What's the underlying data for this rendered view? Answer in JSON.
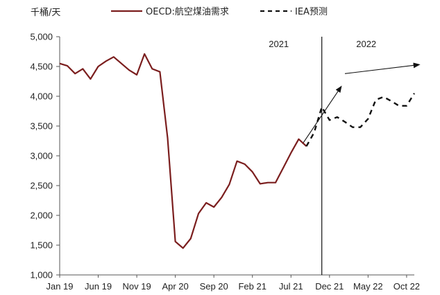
{
  "chart_data": {
    "type": "line",
    "unit_label": "千桶/天",
    "x_labels": [
      "Jan 19",
      "Jun 19",
      "Nov 19",
      "Apr 20",
      "Sep 20",
      "Feb 21",
      "Jul 21",
      "Dec 21",
      "May 22",
      "Oct 22"
    ],
    "y_ticks": [
      "1,000",
      "1,500",
      "2,000",
      "2,500",
      "3,000",
      "3,500",
      "4,000",
      "4,500",
      "5,000"
    ],
    "ylim": [
      1000,
      5000
    ],
    "year_labels": [
      "2021",
      "2022"
    ],
    "series": [
      {
        "name": "OECD:航空煤油需求",
        "style": "solid",
        "color": "#7b1e1e",
        "points": [
          [
            0,
            4550
          ],
          [
            1,
            4510
          ],
          [
            2,
            4380
          ],
          [
            3,
            4460
          ],
          [
            4,
            4290
          ],
          [
            5,
            4500
          ],
          [
            6,
            4590
          ],
          [
            7,
            4660
          ],
          [
            8,
            4550
          ],
          [
            9,
            4440
          ],
          [
            10,
            4360
          ],
          [
            11,
            4710
          ],
          [
            12,
            4460
          ],
          [
            13,
            4410
          ],
          [
            14,
            3300
          ],
          [
            15,
            1560
          ],
          [
            16,
            1450
          ],
          [
            17,
            1610
          ],
          [
            18,
            2030
          ],
          [
            19,
            2210
          ],
          [
            20,
            2140
          ],
          [
            21,
            2300
          ],
          [
            22,
            2520
          ],
          [
            23,
            2910
          ],
          [
            24,
            2860
          ],
          [
            25,
            2730
          ],
          [
            26,
            2530
          ],
          [
            27,
            2550
          ],
          [
            28,
            2550
          ],
          [
            29,
            2800
          ],
          [
            30,
            3050
          ],
          [
            31,
            3280
          ],
          [
            32,
            3160
          ]
        ]
      },
      {
        "name": "IEA预测",
        "style": "dashed",
        "color": "#111111",
        "points": [
          [
            32,
            3160
          ],
          [
            33,
            3390
          ],
          [
            34,
            3820
          ],
          [
            35,
            3600
          ],
          [
            36,
            3650
          ],
          [
            37,
            3570
          ],
          [
            38,
            3480
          ],
          [
            39,
            3480
          ],
          [
            40,
            3620
          ],
          [
            41,
            3940
          ],
          [
            42,
            3990
          ],
          [
            43,
            3920
          ],
          [
            44,
            3840
          ],
          [
            45,
            3840
          ],
          [
            46,
            4050
          ]
        ]
      }
    ],
    "divider_x": 34,
    "arrows": [
      {
        "from": [
          31.5,
          3200
        ],
        "to": [
          36.5,
          4160
        ]
      },
      {
        "from": [
          37,
          4380
        ],
        "to": [
          46.6,
          4530
        ]
      }
    ],
    "grid": false,
    "legend_position": "top"
  }
}
